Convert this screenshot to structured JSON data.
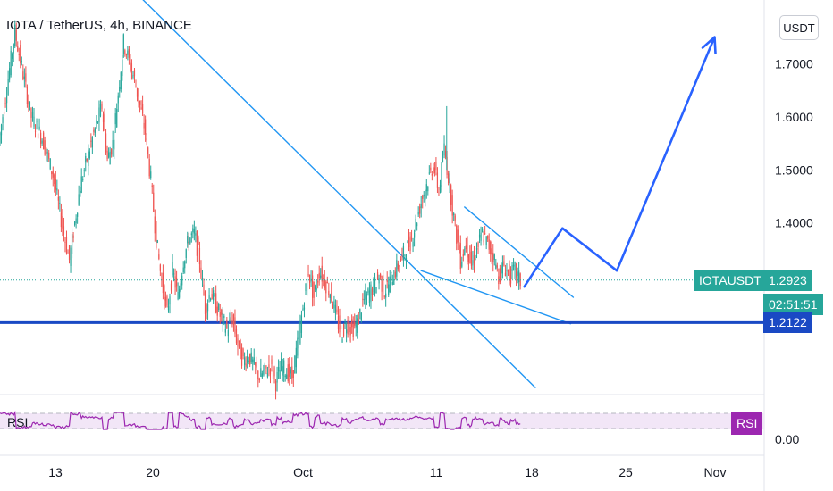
{
  "header": {
    "title": "IOTA / TetherUS, 4h, BINANCE",
    "currency": "USDT"
  },
  "colors": {
    "up": "#26a69a",
    "down": "#ef5350",
    "trendline": "#2196f3",
    "drawing": "#2962ff",
    "support": "#1a49c4",
    "rsi": "#9c27b0",
    "rsi_band": "#f2e6f7"
  },
  "chart_data": {
    "type": "candlestick",
    "symbol": "IOTAUSDT",
    "interval": "4h",
    "exchange": "BINANCE",
    "x_ticks": [
      "13",
      "20",
      "Oct",
      "11",
      "18",
      "25",
      "Nov"
    ],
    "y_ticks": [
      "1.4000",
      "1.5000",
      "1.6000",
      "1.7000"
    ],
    "ylim": [
      1.08,
      1.82
    ],
    "last_price": "1.2923",
    "countdown": "02:51:51",
    "symbol_label": "IOTAUSDT",
    "support_level": "1.2122",
    "rsi_label": "RSI",
    "rsi_axis_label": "0.00",
    "anchors": [
      [
        0,
        1.55
      ],
      [
        3,
        1.76
      ],
      [
        6,
        1.6
      ],
      [
        8,
        1.56
      ],
      [
        10,
        1.49
      ],
      [
        12,
        1.38
      ],
      [
        13,
        1.33
      ],
      [
        15,
        1.47
      ],
      [
        17,
        1.55
      ],
      [
        19,
        1.62
      ],
      [
        20,
        1.52
      ],
      [
        21,
        1.55
      ],
      [
        23,
        1.74
      ],
      [
        25,
        1.67
      ],
      [
        26,
        1.62
      ],
      [
        27,
        1.57
      ],
      [
        28,
        1.48
      ],
      [
        29,
        1.37
      ],
      [
        30,
        1.29
      ],
      [
        31,
        1.23
      ],
      [
        32,
        1.31
      ],
      [
        33,
        1.26
      ],
      [
        34,
        1.33
      ],
      [
        35,
        1.37
      ],
      [
        36,
        1.38
      ],
      [
        37,
        1.33
      ],
      [
        38,
        1.24
      ],
      [
        39,
        1.27
      ],
      [
        41,
        1.22
      ],
      [
        42,
        1.2
      ],
      [
        43,
        1.22
      ],
      [
        44,
        1.17
      ],
      [
        45,
        1.14
      ],
      [
        46,
        1.15
      ],
      [
        48,
        1.11
      ],
      [
        50,
        1.13
      ],
      [
        51,
        1.1
      ],
      [
        52,
        1.13
      ],
      [
        54,
        1.11
      ],
      [
        55,
        1.17
      ],
      [
        56,
        1.24
      ],
      [
        57,
        1.31
      ],
      [
        58,
        1.26
      ],
      [
        59,
        1.31
      ],
      [
        60,
        1.29
      ],
      [
        61,
        1.27
      ],
      [
        62,
        1.23
      ],
      [
        63,
        1.19
      ],
      [
        64,
        1.21
      ],
      [
        65,
        1.2
      ],
      [
        66,
        1.21
      ],
      [
        67,
        1.25
      ],
      [
        69,
        1.28
      ],
      [
        70,
        1.3
      ],
      [
        71,
        1.27
      ],
      [
        73,
        1.31
      ],
      [
        74,
        1.33
      ],
      [
        76,
        1.37
      ],
      [
        78,
        1.45
      ],
      [
        80,
        1.51
      ],
      [
        81,
        1.46
      ],
      [
        82,
        1.54
      ],
      [
        83,
        1.47
      ],
      [
        84,
        1.39
      ],
      [
        85,
        1.33
      ],
      [
        86,
        1.36
      ],
      [
        87,
        1.32
      ],
      [
        88,
        1.35
      ],
      [
        89,
        1.38
      ],
      [
        90,
        1.36
      ],
      [
        91,
        1.34
      ],
      [
        92,
        1.3
      ],
      [
        93,
        1.32
      ],
      [
        94,
        1.3
      ],
      [
        95,
        1.31
      ],
      [
        96,
        1.29
      ]
    ],
    "drawings": {
      "downtrend_line": [
        [
          15.5,
          1.93
        ],
        [
          98.5,
          1.09
        ]
      ],
      "wedge_upper": [
        [
          85.5,
          1.43
        ],
        [
          105.5,
          1.26
        ]
      ],
      "wedge_lower": [
        [
          77.5,
          1.31
        ],
        [
          105,
          1.21
        ]
      ],
      "projection": [
        [
          96.5,
          1.28
        ],
        [
          103.5,
          1.39
        ],
        [
          113.5,
          1.31
        ],
        [
          131.5,
          1.75
        ]
      ]
    }
  }
}
